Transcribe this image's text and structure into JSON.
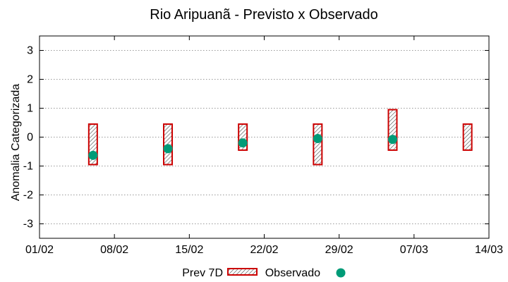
{
  "chart_data": {
    "type": "range-bar-with-points",
    "title": "Rio Aripuanã - Previsto x Observado",
    "xlabel": "",
    "ylabel": "Anomalia Categorizada",
    "x_ticks": [
      "01/02",
      "08/02",
      "15/02",
      "22/02",
      "29/02",
      "07/03",
      "14/03"
    ],
    "xlim": [
      "01/02",
      "14/03"
    ],
    "ylim": [
      -3.5,
      3.5
    ],
    "y_ticks": [
      -3,
      -2,
      -1,
      0,
      1,
      2,
      3
    ],
    "grid": "y",
    "legend_position": "bottom",
    "series": [
      {
        "name": "Prev 7D",
        "kind": "range",
        "color": "#cc0000",
        "x": [
          "06/02",
          "13/02",
          "20/02",
          "27/02",
          "05/03",
          "12/03"
        ],
        "low": [
          -0.95,
          -0.95,
          -0.45,
          -0.95,
          -0.45,
          -0.45
        ],
        "high": [
          0.45,
          0.45,
          0.45,
          0.45,
          0.95,
          0.45
        ]
      },
      {
        "name": "Observado",
        "kind": "point",
        "color": "#009b77",
        "x": [
          "06/02",
          "13/02",
          "20/02",
          "27/02",
          "05/03"
        ],
        "values": [
          -0.63,
          -0.4,
          -0.2,
          -0.05,
          -0.08
        ]
      }
    ]
  }
}
